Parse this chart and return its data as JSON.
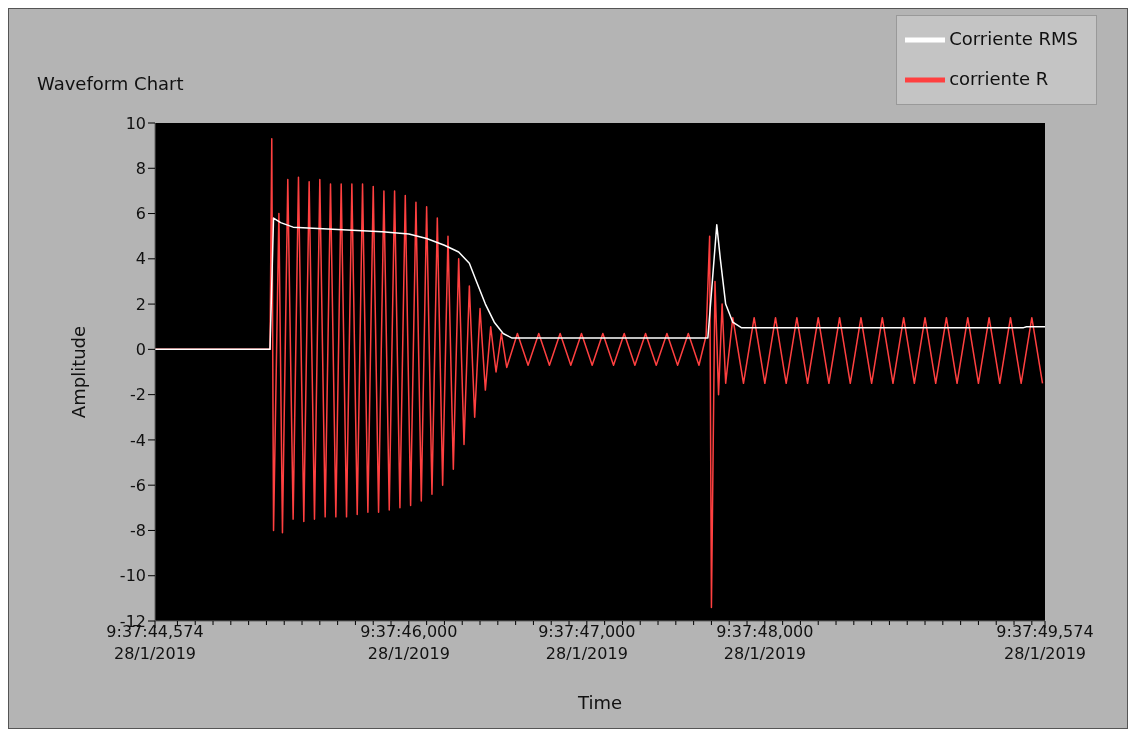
{
  "chart_data": {
    "type": "line",
    "title": "Waveform Chart",
    "xlabel": "Time",
    "ylabel": "Amplitude",
    "legend": "top right",
    "marker": "none",
    "line_style": "solid",
    "xlim": [
      "2019-01-28T09:37:44.574",
      "2019-01-28T09:37:49.574"
    ],
    "xticks": [
      {
        "value": "2019-01-28T09:37:44.574",
        "label": "9:37:44,574\n28/1/2019"
      },
      {
        "value": "2019-01-28T09:37:44.7",
        "label": null
      },
      {
        "value": "2019-01-28T09:37:44.8",
        "label": null
      },
      {
        "value": "2019-01-28T09:37:44.9",
        "label": null
      },
      {
        "value": "2019-01-28T09:37:45.0",
        "label": null
      },
      {
        "value": "2019-01-28T09:37:45.1",
        "label": null
      },
      {
        "value": "2019-01-28T09:37:45.2",
        "label": null
      },
      {
        "value": "2019-01-28T09:37:45.3",
        "label": null
      },
      {
        "value": "2019-01-28T09:37:45.4",
        "label": null
      },
      {
        "value": "2019-01-28T09:37:45.5",
        "label": null
      },
      {
        "value": "2019-01-28T09:37:45.6",
        "label": null
      },
      {
        "value": "2019-01-28T09:37:45.7",
        "label": null
      },
      {
        "value": "2019-01-28T09:37:45.8",
        "label": null
      },
      {
        "value": "2019-01-28T09:37:45.9",
        "label": null
      },
      {
        "value": "2019-01-28T09:37:46.0",
        "label": "9:37:46,000\n28/1/2019"
      },
      {
        "value": "2019-01-28T09:37:46.1",
        "label": null
      },
      {
        "value": "2019-01-28T09:37:46.2",
        "label": null
      },
      {
        "value": "2019-01-28T09:37:46.3",
        "label": null
      },
      {
        "value": "2019-01-28T09:37:46.4",
        "label": null
      },
      {
        "value": "2019-01-28T09:37:46.5",
        "label": null
      },
      {
        "value": "2019-01-28T09:37:46.6",
        "label": null
      },
      {
        "value": "2019-01-28T09:37:46.7",
        "label": null
      },
      {
        "value": "2019-01-28T09:37:46.8",
        "label": null
      },
      {
        "value": "2019-01-28T09:37:46.9",
        "label": null
      },
      {
        "value": "2019-01-28T09:37:47.0",
        "label": "9:37:47,000\n28/1/2019"
      },
      {
        "value": "2019-01-28T09:37:47.1",
        "label": null
      },
      {
        "value": "2019-01-28T09:37:47.2",
        "label": null
      },
      {
        "value": "2019-01-28T09:37:47.3",
        "label": null
      },
      {
        "value": "2019-01-28T09:37:47.4",
        "label": null
      },
      {
        "value": "2019-01-28T09:37:47.5",
        "label": null
      },
      {
        "value": "2019-01-28T09:37:47.6",
        "label": null
      },
      {
        "value": "2019-01-28T09:37:47.7",
        "label": null
      },
      {
        "value": "2019-01-28T09:37:47.8",
        "label": null
      },
      {
        "value": "2019-01-28T09:37:47.9",
        "label": null
      },
      {
        "value": "2019-01-28T09:37:48.0",
        "label": "9:37:48,000\n28/1/2019"
      },
      {
        "value": "2019-01-28T09:37:48.1",
        "label": null
      },
      {
        "value": "2019-01-28T09:37:48.2",
        "label": null
      },
      {
        "value": "2019-01-28T09:37:48.3",
        "label": null
      },
      {
        "value": "2019-01-28T09:37:48.4",
        "label": null
      },
      {
        "value": "2019-01-28T09:37:48.5",
        "label": null
      },
      {
        "value": "2019-01-28T09:37:48.6",
        "label": null
      },
      {
        "value": "2019-01-28T09:37:48.7",
        "label": null
      },
      {
        "value": "2019-01-28T09:37:48.8",
        "label": null
      },
      {
        "value": "2019-01-28T09:37:48.9",
        "label": null
      },
      {
        "value": "2019-01-28T09:37:49.0",
        "label": null
      },
      {
        "value": "2019-01-28T09:37:49.1",
        "label": null
      },
      {
        "value": "2019-01-28T09:37:49.2",
        "label": null
      },
      {
        "value": "2019-01-28T09:37:49.3",
        "label": null
      },
      {
        "value": "2019-01-28T09:37:49.4",
        "label": null
      },
      {
        "value": "2019-01-28T09:37:49.5",
        "label": null
      },
      {
        "value": "2019-01-28T09:37:49.574",
        "label": "9:37:49,574\n28/1/2019"
      }
    ],
    "ylim": [
      -12,
      10
    ],
    "yticks": [
      -12,
      -10,
      -8,
      -6,
      -4,
      -2,
      0,
      2,
      4,
      6,
      8,
      10
    ],
    "series": [
      {
        "name": "corriente R",
        "color": "#ff4040",
        "x": [
          "2019-01-28T09:37:44.574",
          "2019-01-28T09:37:45.22",
          "2019-01-28T09:37:45.23",
          "2019-01-28T09:37:45.24",
          "2019-01-28T09:37:45.27",
          "2019-01-28T09:37:45.29",
          "2019-01-28T09:37:45.32",
          "2019-01-28T09:37:45.35",
          "2019-01-28T09:37:45.38",
          "2019-01-28T09:37:45.41",
          "2019-01-28T09:37:45.44",
          "2019-01-28T09:37:45.47",
          "2019-01-28T09:37:45.50",
          "2019-01-28T09:37:45.53",
          "2019-01-28T09:37:45.56",
          "2019-01-28T09:37:45.59",
          "2019-01-28T09:37:45.62",
          "2019-01-28T09:37:45.65",
          "2019-01-28T09:37:45.68",
          "2019-01-28T09:37:45.71",
          "2019-01-28T09:37:45.74",
          "2019-01-28T09:37:45.77",
          "2019-01-28T09:37:45.80",
          "2019-01-28T09:37:45.83",
          "2019-01-28T09:37:45.86",
          "2019-01-28T09:37:45.89",
          "2019-01-28T09:37:45.92",
          "2019-01-28T09:37:45.95",
          "2019-01-28T09:37:45.98",
          "2019-01-28T09:37:46.01",
          "2019-01-28T09:37:46.04",
          "2019-01-28T09:37:46.07",
          "2019-01-28T09:37:46.10",
          "2019-01-28T09:37:46.13",
          "2019-01-28T09:37:46.16",
          "2019-01-28T09:37:46.19",
          "2019-01-28T09:37:46.22",
          "2019-01-28T09:37:46.25",
          "2019-01-28T09:37:46.28",
          "2019-01-28T09:37:46.31",
          "2019-01-28T09:37:46.34",
          "2019-01-28T09:37:46.37",
          "2019-01-28T09:37:46.40",
          "2019-01-28T09:37:46.43",
          "2019-01-28T09:37:46.46",
          "2019-01-28T09:37:46.49",
          "2019-01-28T09:37:46.52",
          "2019-01-28T09:37:46.55",
          "2019-01-28T09:37:46.61",
          "2019-01-28T09:37:46.67",
          "2019-01-28T09:37:46.73",
          "2019-01-28T09:37:46.79",
          "2019-01-28T09:37:46.85",
          "2019-01-28T09:37:46.91",
          "2019-01-28T09:37:46.97",
          "2019-01-28T09:37:47.03",
          "2019-01-28T09:37:47.09",
          "2019-01-28T09:37:47.15",
          "2019-01-28T09:37:47.21",
          "2019-01-28T09:37:47.27",
          "2019-01-28T09:37:47.33",
          "2019-01-28T09:37:47.39",
          "2019-01-28T09:37:47.45",
          "2019-01-28T09:37:47.51",
          "2019-01-28T09:37:47.57",
          "2019-01-28T09:37:47.63",
          "2019-01-28T09:37:47.67",
          "2019-01-28T09:37:47.69",
          "2019-01-28T09:37:47.70",
          "2019-01-28T09:37:47.72",
          "2019-01-28T09:37:47.74",
          "2019-01-28T09:37:47.76",
          "2019-01-28T09:37:47.78",
          "2019-01-28T09:37:47.82",
          "2019-01-28T09:37:47.88",
          "2019-01-28T09:37:47.94",
          "2019-01-28T09:37:48.00",
          "2019-01-28T09:37:48.06",
          "2019-01-28T09:37:48.12",
          "2019-01-28T09:37:48.18",
          "2019-01-28T09:37:48.24",
          "2019-01-28T09:37:48.30",
          "2019-01-28T09:37:48.36",
          "2019-01-28T09:37:48.42",
          "2019-01-28T09:37:48.48",
          "2019-01-28T09:37:48.54",
          "2019-01-28T09:37:48.60",
          "2019-01-28T09:37:48.66",
          "2019-01-28T09:37:48.72",
          "2019-01-28T09:37:48.78",
          "2019-01-28T09:37:48.84",
          "2019-01-28T09:37:48.90",
          "2019-01-28T09:37:48.96",
          "2019-01-28T09:37:49.02",
          "2019-01-28T09:37:49.08",
          "2019-01-28T09:37:49.14",
          "2019-01-28T09:37:49.20",
          "2019-01-28T09:37:49.26",
          "2019-01-28T09:37:49.32",
          "2019-01-28T09:37:49.38",
          "2019-01-28T09:37:49.44",
          "2019-01-28T09:37:49.50",
          "2019-01-28T09:37:49.56"
        ],
        "values": [
          0,
          0,
          9.3,
          -8.0,
          6.0,
          -8.1,
          7.5,
          -7.5,
          7.6,
          -7.6,
          7.4,
          -7.5,
          7.5,
          -7.4,
          7.3,
          -7.4,
          7.3,
          -7.4,
          7.3,
          -7.3,
          7.3,
          -7.2,
          7.2,
          -7.2,
          7.0,
          -7.1,
          7.0,
          -7.0,
          6.8,
          -6.9,
          6.5,
          -6.7,
          6.3,
          -6.4,
          5.8,
          -6.0,
          5.0,
          -5.3,
          4.0,
          -4.2,
          2.8,
          -3.0,
          1.8,
          -1.8,
          1.0,
          -1.0,
          0.7,
          -0.8,
          0.7,
          -0.7,
          0.7,
          -0.7,
          0.7,
          -0.7,
          0.7,
          -0.7,
          0.7,
          -0.7,
          0.7,
          -0.7,
          0.7,
          -0.7,
          0.7,
          -0.7,
          0.7,
          -0.7,
          0.6,
          5.0,
          -11.4,
          3.0,
          -2.0,
          2.0,
          -1.5,
          1.4,
          -1.5,
          1.4,
          -1.5,
          1.4,
          -1.5,
          1.4,
          -1.5,
          1.4,
          -1.5,
          1.4,
          -1.5,
          1.4,
          -1.5,
          1.4,
          -1.5,
          1.4,
          -1.5,
          1.4,
          -1.5,
          1.4,
          -1.5,
          1.4,
          -1.5,
          1.4,
          -1.5,
          1.4,
          -1.5,
          1.4,
          -1.5
        ]
      },
      {
        "name": "Corriente RMS",
        "color": "#ffffff",
        "x": [
          "2019-01-28T09:37:44.574",
          "2019-01-28T09:37:45.22",
          "2019-01-28T09:37:45.24",
          "2019-01-28T09:37:45.28",
          "2019-01-28T09:37:45.35",
          "2019-01-28T09:37:45.60",
          "2019-01-28T09:37:45.85",
          "2019-01-28T09:37:46.00",
          "2019-01-28T09:37:46.10",
          "2019-01-28T09:37:46.20",
          "2019-01-28T09:37:46.28",
          "2019-01-28T09:37:46.34",
          "2019-01-28T09:37:46.38",
          "2019-01-28T09:37:46.43",
          "2019-01-28T09:37:46.48",
          "2019-01-28T09:37:46.53",
          "2019-01-28T09:37:46.58",
          "2019-01-28T09:37:47.68",
          "2019-01-28T09:37:47.71",
          "2019-01-28T09:37:47.73",
          "2019-01-28T09:37:47.75",
          "2019-01-28T09:37:47.78",
          "2019-01-28T09:37:47.82",
          "2019-01-28T09:37:47.87",
          "2019-01-28T09:37:49.45",
          "2019-01-28T09:37:49.47",
          "2019-01-28T09:37:49.574"
        ],
        "values": [
          0,
          0,
          5.8,
          5.6,
          5.4,
          5.3,
          5.2,
          5.1,
          4.9,
          4.6,
          4.3,
          3.8,
          3.0,
          2.0,
          1.2,
          0.7,
          0.5,
          0.5,
          3.5,
          5.5,
          4.0,
          2.0,
          1.2,
          0.95,
          0.95,
          1.0,
          1.0
        ]
      }
    ]
  }
}
